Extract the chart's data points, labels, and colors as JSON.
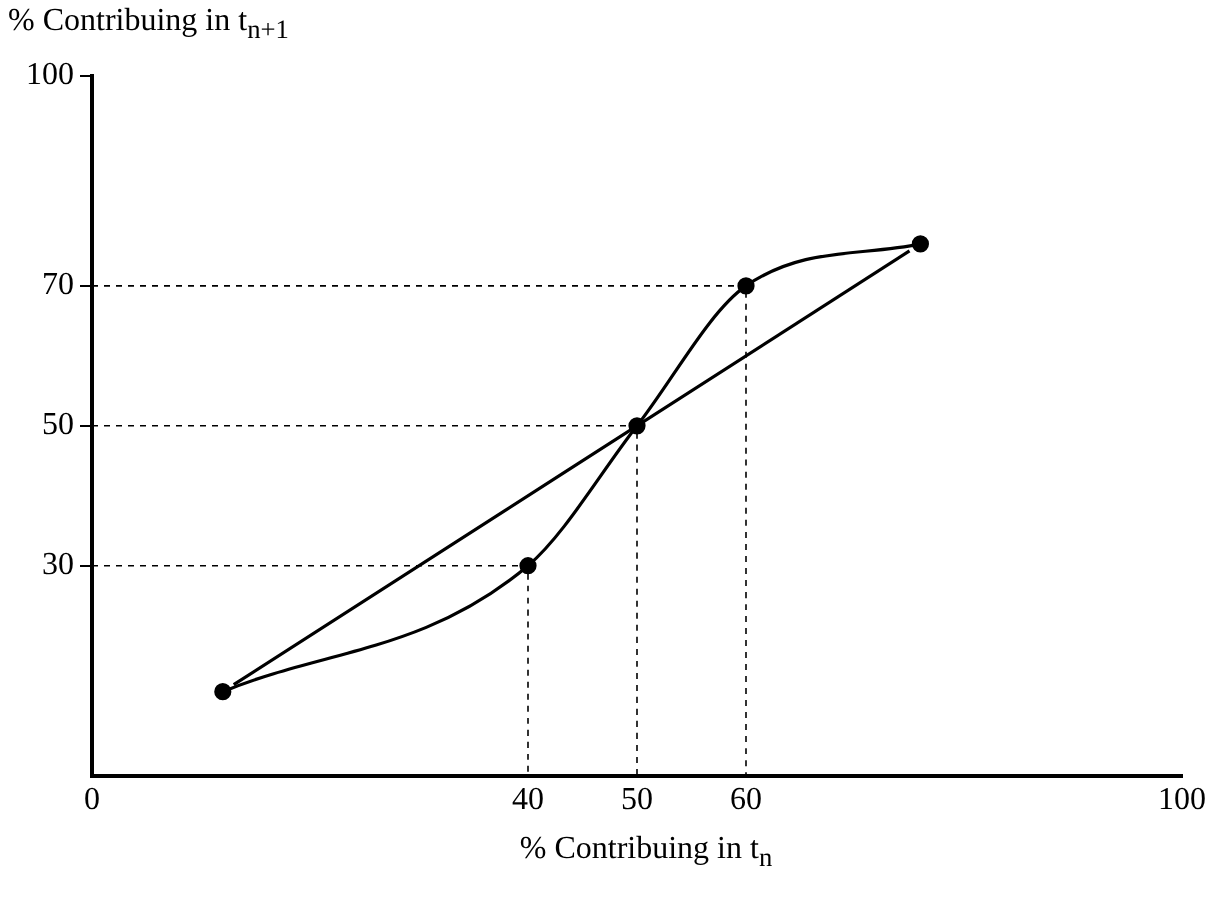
{
  "chart_data": {
    "type": "line",
    "xlabel": "% Contribuing in t$_{n}$",
    "ylabel": "% Contribuing in t$_{n+1}$",
    "xlim": [
      0,
      100
    ],
    "ylim": [
      0,
      100
    ],
    "xticks": [
      0,
      40,
      50,
      60,
      100
    ],
    "yticks": [
      30,
      50,
      70,
      100
    ],
    "grid": false,
    "legend": false,
    "series": [
      {
        "color": "#000000",
        "x": [
          12,
          40,
          50,
          60,
          76
        ],
        "values": [
          12,
          30,
          50,
          70,
          76
        ],
        "marker": "circle",
        "line_style": "solid"
      },
      {
        "color": "#000000",
        "x": [
          13,
          75
        ],
        "values": [
          13,
          75
        ],
        "marker": "none",
        "line_style": "solid"
      },
      {
        "color": "#000000",
        "x": [
          0,
          40,
          40
        ],
        "values": [
          30,
          30,
          0
        ],
        "marker": "none",
        "line_style": "dashed"
      },
      {
        "color": "#000000",
        "x": [
          0,
          50,
          50
        ],
        "values": [
          50,
          50,
          0
        ],
        "marker": "none",
        "line_style": "dashed"
      },
      {
        "color": "#000000",
        "x": [
          0,
          60,
          60
        ],
        "values": [
          70,
          70,
          0
        ],
        "marker": "none",
        "line_style": "dashed"
      }
    ]
  }
}
